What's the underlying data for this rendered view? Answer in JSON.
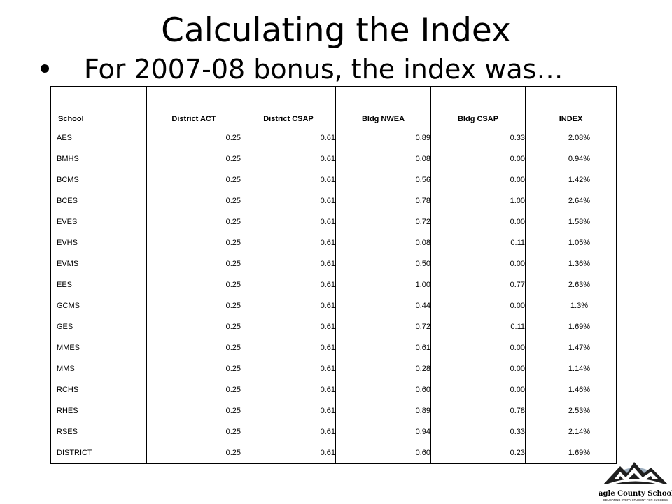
{
  "slide": {
    "title": "Calculating the Index",
    "bullet": "For 2007-08 bonus, the index was…"
  },
  "table": {
    "headers": [
      "School",
      "District ACT",
      "District CSAP",
      "Bldg NWEA",
      "Bldg CSAP",
      "INDEX"
    ],
    "rows": [
      [
        "AES",
        "0.25",
        "0.61",
        "0.89",
        "0.33",
        "2.08%"
      ],
      [
        "BMHS",
        "0.25",
        "0.61",
        "0.08",
        "0.00",
        "0.94%"
      ],
      [
        "BCMS",
        "0.25",
        "0.61",
        "0.56",
        "0.00",
        "1.42%"
      ],
      [
        "BCES",
        "0.25",
        "0.61",
        "0.78",
        "1.00",
        "2.64%"
      ],
      [
        "EVES",
        "0.25",
        "0.61",
        "0.72",
        "0.00",
        "1.58%"
      ],
      [
        "EVHS",
        "0.25",
        "0.61",
        "0.08",
        "0.11",
        "1.05%"
      ],
      [
        "EVMS",
        "0.25",
        "0.61",
        "0.50",
        "0.00",
        "1.36%"
      ],
      [
        "EES",
        "0.25",
        "0.61",
        "1.00",
        "0.77",
        "2.63%"
      ],
      [
        "GCMS",
        "0.25",
        "0.61",
        "0.44",
        "0.00",
        "1.3%"
      ],
      [
        "GES",
        "0.25",
        "0.61",
        "0.72",
        "0.11",
        "1.69%"
      ],
      [
        "MMES",
        "0.25",
        "0.61",
        "0.61",
        "0.00",
        "1.47%"
      ],
      [
        "MMS",
        "0.25",
        "0.61",
        "0.28",
        "0.00",
        "1.14%"
      ],
      [
        "RCHS",
        "0.25",
        "0.61",
        "0.60",
        "0.00",
        "1.46%"
      ],
      [
        "RHES",
        "0.25",
        "0.61",
        "0.89",
        "0.78",
        "2.53%"
      ],
      [
        "RSES",
        "0.25",
        "0.61",
        "0.94",
        "0.33",
        "2.14%"
      ],
      [
        "DISTRICT",
        "0.25",
        "0.61",
        "0.60",
        "0.23",
        "1.69%"
      ]
    ]
  },
  "logo": {
    "name": "Eagle County Schools",
    "tagline": "EDUCATING EVERY STUDENT FOR SUCCESS",
    "icon": "mountain-logo-icon",
    "colors": {
      "mountain": "#1f1f1f",
      "sky": "#9fb0c0",
      "band": "#ffffff"
    }
  }
}
